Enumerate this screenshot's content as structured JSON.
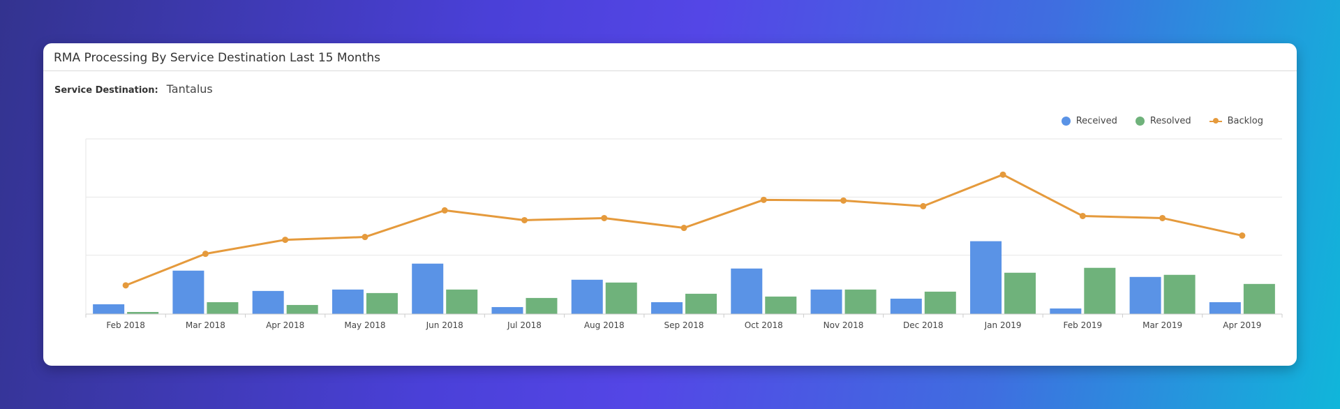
{
  "card": {
    "title": "RMA Processing By Service Destination Last 15 Months"
  },
  "filter": {
    "label": "Service Destination:",
    "value": "Tantalus"
  },
  "colors": {
    "received": "#5a93e6",
    "resolved": "#6fb27b",
    "backlog": "#e59a3c",
    "grid": "#e6e6e6",
    "axis": "#cccccc"
  },
  "chart_data": {
    "type": "bar",
    "categories": [
      "Feb 2018",
      "Mar 2018",
      "Apr 2018",
      "May 2018",
      "Jun 2018",
      "Jul 2018",
      "Aug 2018",
      "Sep 2018",
      "Oct 2018",
      "Nov 2018",
      "Dec 2018",
      "Jan 2019",
      "Feb 2019",
      "Mar 2019",
      "Apr 2019"
    ],
    "series": [
      {
        "name": "Received",
        "type": "bar",
        "values": [
          14,
          62,
          33,
          35,
          72,
          10,
          49,
          17,
          65,
          35,
          22,
          104,
          8,
          53,
          17
        ]
      },
      {
        "name": "Resolved",
        "type": "bar",
        "values": [
          3,
          17,
          13,
          30,
          35,
          23,
          45,
          29,
          25,
          35,
          32,
          59,
          66,
          56,
          43
        ]
      },
      {
        "name": "Backlog",
        "type": "line",
        "values": [
          41,
          86,
          106,
          110,
          148,
          134,
          137,
          123,
          163,
          162,
          154,
          199,
          140,
          137,
          112
        ]
      }
    ],
    "ylim": [
      0,
      250
    ],
    "yticks": [
      0,
      84,
      167,
      250
    ],
    "grid": true,
    "legend": "top-right"
  }
}
